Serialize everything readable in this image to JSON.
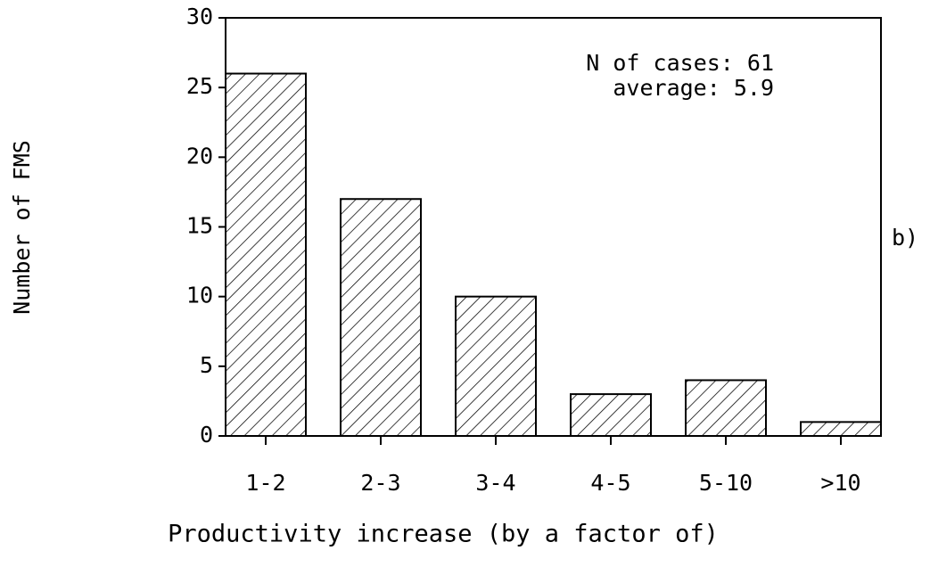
{
  "chart_data": {
    "type": "bar",
    "x_label": "Productivity increase (by a factor of)",
    "y_label": "Number of FMS",
    "categories": [
      "1-2",
      "2-3",
      "3-4",
      "4-5",
      "5-10",
      ">10"
    ],
    "values": [
      26,
      17,
      10,
      3,
      4,
      1
    ],
    "color": "#000000",
    "ylim": [
      0,
      30
    ],
    "yticks": [
      0,
      5,
      10,
      15,
      20,
      25,
      30
    ],
    "annotations": [
      "N of cases: 61",
      "average: 5.9"
    ],
    "panel_label": "b)"
  }
}
